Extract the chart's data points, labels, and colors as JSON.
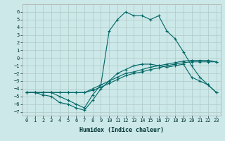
{
  "xlabel": "Humidex (Indice chaleur)",
  "bg_color": "#cce8e8",
  "grid_color": "#b0c8c8",
  "line_color": "#006666",
  "xlim": [
    -0.5,
    23.5
  ],
  "ylim": [
    -7.5,
    7.0
  ],
  "xticks": [
    0,
    1,
    2,
    3,
    4,
    5,
    6,
    7,
    8,
    9,
    10,
    11,
    12,
    13,
    14,
    15,
    16,
    17,
    18,
    19,
    20,
    21,
    22,
    23
  ],
  "yticks": [
    -7,
    -6,
    -5,
    -4,
    -3,
    -2,
    -1,
    0,
    1,
    2,
    3,
    4,
    5,
    6
  ],
  "series": [
    {
      "x": [
        0,
        1,
        2,
        3,
        4,
        5,
        6,
        7,
        8,
        9,
        10,
        11,
        12,
        13,
        14,
        15,
        16,
        17,
        18,
        19,
        20,
        21,
        22,
        23
      ],
      "y": [
        -4.5,
        -4.5,
        -4.5,
        -4.5,
        -5.0,
        -5.5,
        -6.0,
        -6.5,
        -4.8,
        -3.5,
        3.5,
        5.0,
        6.0,
        5.5,
        5.5,
        5.0,
        5.5,
        3.5,
        2.5,
        0.8,
        -1.0,
        -2.5,
        -3.5,
        -4.5
      ]
    },
    {
      "x": [
        0,
        1,
        2,
        3,
        4,
        5,
        6,
        7,
        8,
        9,
        10,
        11,
        12,
        13,
        14,
        15,
        16,
        17,
        18,
        19,
        20,
        21,
        22,
        23
      ],
      "y": [
        -4.5,
        -4.5,
        -4.8,
        -5.0,
        -5.8,
        -6.0,
        -6.5,
        -6.8,
        -5.5,
        -4.0,
        -3.0,
        -2.0,
        -1.5,
        -1.0,
        -0.8,
        -0.8,
        -1.0,
        -1.2,
        -1.0,
        -0.8,
        -2.5,
        -3.0,
        -3.5,
        -4.5
      ]
    },
    {
      "x": [
        0,
        1,
        2,
        3,
        4,
        5,
        6,
        7,
        8,
        9,
        10,
        11,
        12,
        13,
        14,
        15,
        16,
        17,
        18,
        19,
        20,
        21,
        22,
        23
      ],
      "y": [
        -4.5,
        -4.5,
        -4.5,
        -4.5,
        -4.5,
        -4.5,
        -4.5,
        -4.5,
        -4.0,
        -3.5,
        -3.0,
        -2.5,
        -2.0,
        -1.8,
        -1.5,
        -1.2,
        -1.0,
        -0.8,
        -0.6,
        -0.4,
        -0.3,
        -0.3,
        -0.3,
        -0.5
      ]
    },
    {
      "x": [
        0,
        1,
        2,
        3,
        4,
        5,
        6,
        7,
        8,
        9,
        10,
        11,
        12,
        13,
        14,
        15,
        16,
        17,
        18,
        19,
        20,
        21,
        22,
        23
      ],
      "y": [
        -4.5,
        -4.5,
        -4.5,
        -4.5,
        -4.5,
        -4.5,
        -4.5,
        -4.5,
        -4.2,
        -3.8,
        -3.3,
        -2.8,
        -2.3,
        -2.0,
        -1.8,
        -1.5,
        -1.3,
        -1.0,
        -0.8,
        -0.6,
        -0.5,
        -0.5,
        -0.5,
        -0.5
      ]
    }
  ]
}
